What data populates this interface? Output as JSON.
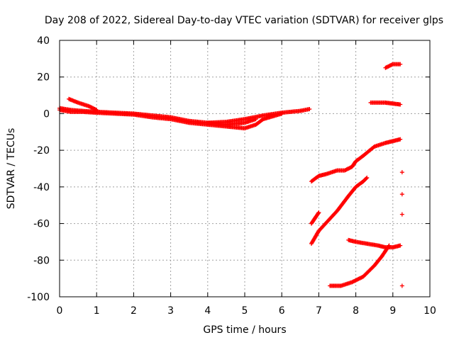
{
  "chart_data": {
    "type": "scatter",
    "title": "Day 208 of 2022, Sidereal Day-to-day VTEC variation (SDTVAR) for receiver glps",
    "xlabel": "GPS time / hours",
    "ylabel": "SDTVAR / TECUs",
    "xlim": [
      0,
      10
    ],
    "ylim": [
      -100,
      40
    ],
    "xticks": [
      "0",
      "1",
      "2",
      "3",
      "4",
      "5",
      "6",
      "7",
      "8",
      "9",
      "10"
    ],
    "yticks": [
      "40",
      "20",
      "0",
      "-20",
      "-40",
      "-60",
      "-80",
      "-100"
    ],
    "grid": true,
    "marker": "+",
    "color": "#ff0000",
    "series": [
      {
        "x": [
          0.0,
          0.3,
          0.6,
          1.0,
          1.5,
          2.0,
          2.5,
          3.0,
          3.5,
          4.0,
          4.5,
          5.0,
          5.5,
          6.0,
          6.5,
          6.75
        ],
        "y": [
          3,
          2,
          1.5,
          1,
          0.5,
          0,
          -1,
          -2,
          -4,
          -5,
          -4.5,
          -3,
          -1,
          0.5,
          1.5,
          2.5
        ]
      },
      {
        "x": [
          0.25,
          0.5,
          0.8,
          1.0
        ],
        "y": [
          8,
          6,
          4,
          2
        ]
      },
      {
        "x": [
          0.0,
          0.3,
          0.6,
          1.0,
          1.5,
          2.0,
          2.5,
          3.0,
          3.5,
          4.0,
          4.5,
          5.0,
          5.3,
          5.5,
          6.0
        ],
        "y": [
          2,
          1,
          1,
          0.5,
          0,
          -0.5,
          -2,
          -3,
          -5,
          -6,
          -7,
          -8,
          -6,
          -3,
          0
        ]
      },
      {
        "x": [
          4.0,
          4.5,
          5.0,
          5.3
        ],
        "y": [
          -5,
          -6,
          -5,
          -3
        ]
      },
      {
        "x": [
          6.8,
          7.0,
          7.2,
          7.5,
          7.7,
          7.9,
          8.0,
          8.2,
          8.5,
          8.8,
          9.0,
          9.2
        ],
        "y": [
          -37,
          -34,
          -33,
          -31,
          -31,
          -29,
          -26,
          -23,
          -18,
          -16,
          -15,
          -14
        ]
      },
      {
        "x": [
          6.8,
          7.0,
          7.5,
          7.8,
          8.0,
          8.2,
          8.3
        ],
        "y": [
          -71,
          -64,
          -53,
          -45,
          -40,
          -37,
          -35
        ]
      },
      {
        "x": [
          6.8,
          6.9,
          7.0
        ],
        "y": [
          -60,
          -57,
          -54
        ]
      },
      {
        "x": [
          7.8,
          8.0,
          8.3,
          8.6,
          8.8,
          9.0,
          9.2
        ],
        "y": [
          -69,
          -70,
          -71,
          -72,
          -73,
          -73,
          -72
        ]
      },
      {
        "x": [
          7.3,
          7.6,
          7.9,
          8.2,
          8.5,
          8.7,
          8.9
        ],
        "y": [
          -94,
          -94,
          -92,
          -89,
          -83,
          -78,
          -72
        ]
      },
      {
        "x": [
          8.4,
          8.6,
          8.8,
          9.0,
          9.2
        ],
        "y": [
          6,
          6,
          6,
          5.5,
          5
        ]
      },
      {
        "x": [
          8.8,
          8.9,
          9.0,
          9.2
        ],
        "y": [
          25,
          26,
          27,
          27
        ]
      },
      {
        "x": [
          9.25,
          9.25,
          9.25,
          9.25
        ],
        "y": [
          -32,
          -44,
          -55,
          -94
        ]
      }
    ]
  }
}
